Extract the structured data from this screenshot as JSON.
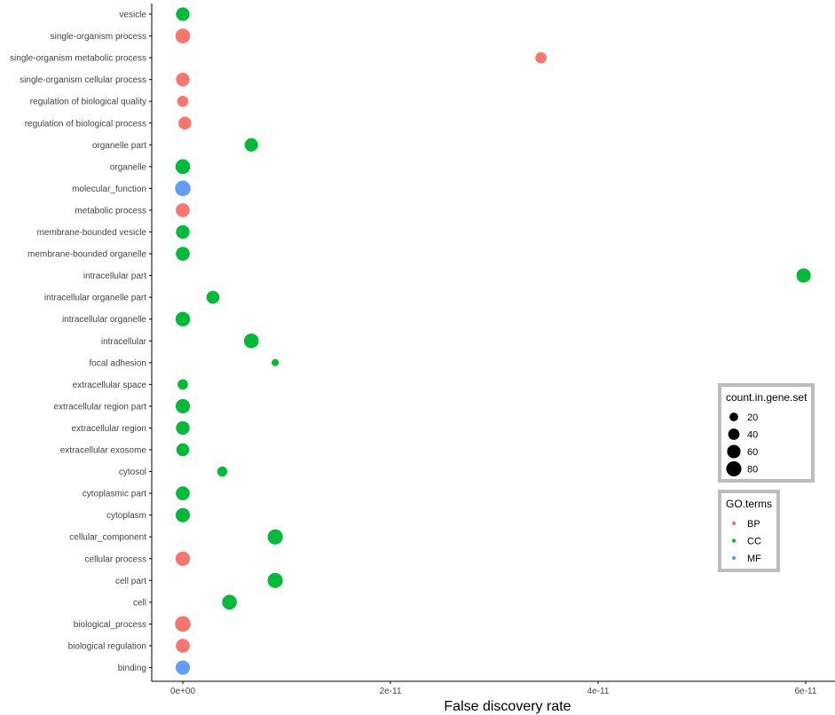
{
  "chart_data": {
    "type": "scatter",
    "title": "",
    "xlabel": "False discovery rate",
    "ylabel": "",
    "xlim": [
      -3e-12,
      6.3e-11
    ],
    "x_ticks": [
      0,
      2e-11,
      4e-11,
      6e-11
    ],
    "x_tick_labels": [
      "0e+00",
      "2e-11",
      "4e-11",
      "6e-11"
    ],
    "grid": false,
    "categories": [
      "vesicle",
      "single-organism process",
      "single-organism metabolic process",
      "single-organism cellular process",
      "regulation of biological quality",
      "regulation of biological process",
      "organelle part",
      "organelle",
      "molecular_function",
      "metabolic process",
      "membrane-bounded vesicle",
      "membrane-bounded organelle",
      "intracellular part",
      "intracellular organelle part",
      "intracellular organelle",
      "intracellular",
      "focal adhesion",
      "extracellular space",
      "extracellular region part",
      "extracellular region",
      "extracellular exosome",
      "cytosol",
      "cytoplasmic part",
      "cytoplasm",
      "cellular_component",
      "cellular process",
      "cell part",
      "cell",
      "biological_process",
      "biological regulation",
      "binding"
    ],
    "points": [
      {
        "term": "vesicle",
        "fdr": 0.0,
        "count": 62,
        "group": "CC"
      },
      {
        "term": "single-organism process",
        "fdr": 0.0,
        "count": 75,
        "group": "BP"
      },
      {
        "term": "single-organism metabolic process",
        "fdr": 3.45e-11,
        "count": 40,
        "group": "BP"
      },
      {
        "term": "single-organism cellular process",
        "fdr": 0.0,
        "count": 62,
        "group": "BP"
      },
      {
        "term": "regulation of biological quality",
        "fdr": 0.0,
        "count": 38,
        "group": "BP"
      },
      {
        "term": "regulation of biological process",
        "fdr": 2e-13,
        "count": 55,
        "group": "BP"
      },
      {
        "term": "organelle part",
        "fdr": 6.6e-12,
        "count": 60,
        "group": "CC"
      },
      {
        "term": "organelle",
        "fdr": 0.0,
        "count": 75,
        "group": "CC"
      },
      {
        "term": "molecular_function",
        "fdr": 0.0,
        "count": 85,
        "group": "MF"
      },
      {
        "term": "metabolic process",
        "fdr": 0.0,
        "count": 65,
        "group": "BP"
      },
      {
        "term": "membrane-bounded vesicle",
        "fdr": 0.0,
        "count": 62,
        "group": "CC"
      },
      {
        "term": "membrane-bounded organelle",
        "fdr": 0.0,
        "count": 65,
        "group": "CC"
      },
      {
        "term": "intracellular part",
        "fdr": 5.98e-11,
        "count": 70,
        "group": "CC"
      },
      {
        "term": "intracellular organelle part",
        "fdr": 2.9e-12,
        "count": 55,
        "group": "CC"
      },
      {
        "term": "intracellular organelle",
        "fdr": 0.0,
        "count": 72,
        "group": "CC"
      },
      {
        "term": "intracellular",
        "fdr": 6.6e-12,
        "count": 75,
        "group": "CC"
      },
      {
        "term": "focal adhesion",
        "fdr": 8.9e-12,
        "count": 12,
        "group": "CC"
      },
      {
        "term": "extracellular space",
        "fdr": 0.0,
        "count": 32,
        "group": "CC"
      },
      {
        "term": "extracellular region part",
        "fdr": 0.0,
        "count": 70,
        "group": "CC"
      },
      {
        "term": "extracellular region",
        "fdr": 0.0,
        "count": 62,
        "group": "CC"
      },
      {
        "term": "extracellular exosome",
        "fdr": 0.0,
        "count": 55,
        "group": "CC"
      },
      {
        "term": "cytosol",
        "fdr": 3.8e-12,
        "count": 30,
        "group": "CC"
      },
      {
        "term": "cytoplasmic part",
        "fdr": 0.0,
        "count": 65,
        "group": "CC"
      },
      {
        "term": "cytoplasm",
        "fdr": 0.0,
        "count": 70,
        "group": "CC"
      },
      {
        "term": "cellular_component",
        "fdr": 8.9e-12,
        "count": 80,
        "group": "CC"
      },
      {
        "term": "cellular process",
        "fdr": 0.0,
        "count": 72,
        "group": "BP"
      },
      {
        "term": "cell part",
        "fdr": 8.9e-12,
        "count": 80,
        "group": "CC"
      },
      {
        "term": "cell",
        "fdr": 4.5e-12,
        "count": 75,
        "group": "CC"
      },
      {
        "term": "biological_process",
        "fdr": 0.0,
        "count": 85,
        "group": "BP"
      },
      {
        "term": "biological regulation",
        "fdr": 0.0,
        "count": 65,
        "group": "BP"
      },
      {
        "term": "binding",
        "fdr": 0.0,
        "count": 70,
        "group": "MF"
      }
    ],
    "size_legend": {
      "title": "count.in.gene.set",
      "entries": [
        20,
        40,
        60,
        80
      ],
      "labels": [
        "20",
        "40",
        "60",
        "80"
      ]
    },
    "color_legend": {
      "title": "GO.terms",
      "entries": [
        {
          "label": "BP",
          "color": "#F8766D"
        },
        {
          "label": "CC",
          "color": "#00BA38"
        },
        {
          "label": "MF",
          "color": "#619CFF"
        }
      ]
    },
    "legend_placement": "right",
    "colors": {
      "BP": "#F8766D",
      "CC": "#00BA38",
      "MF": "#619CFF"
    }
  }
}
